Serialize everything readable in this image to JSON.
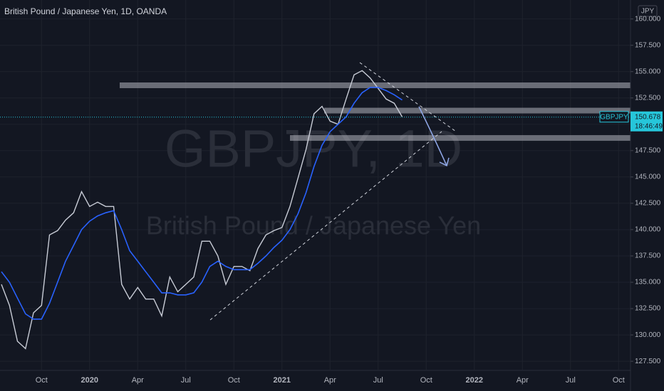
{
  "chart_data": {
    "type": "line",
    "title": "British Pound / Japanese Yen, 1D, OANDA",
    "watermark": "GBPJPY, 1D",
    "watermark_subtitle": "British Pound / Japanese Yen",
    "currency": "JPY",
    "symbol": "GBPJPY",
    "last_price": 150.678,
    "countdown": "18:46:49",
    "categories": [
      null,
      null,
      null,
      null,
      null,
      "Oct",
      null,
      null,
      null,
      null,
      null,
      "2020",
      null,
      null,
      null,
      null,
      null,
      "Apr",
      null,
      null,
      null,
      null,
      null,
      "Jul",
      null,
      null,
      null,
      null,
      null,
      "Oct",
      null,
      null,
      null,
      null,
      null,
      "2021",
      null,
      null,
      null,
      null,
      null,
      "Apr",
      null,
      null,
      null,
      null,
      null,
      "Jul",
      null,
      null,
      null,
      null,
      null,
      "Oct",
      null,
      null,
      null,
      null,
      null,
      "2022",
      null,
      null,
      null,
      null,
      null,
      "Apr",
      null,
      null,
      null,
      null,
      null,
      "Jul",
      null,
      null,
      null,
      null,
      null,
      "Oct"
    ],
    "series": [
      {
        "color": "#c8ccd6",
        "values": [
          134.8,
          132.8,
          129.4,
          128.7,
          132.1,
          132.8,
          139.5,
          139.9,
          140.9,
          141.6,
          143.6,
          142.2,
          142.6,
          142.2,
          142.2,
          134.8,
          133.4,
          134.5,
          133.4,
          133.4,
          131.8,
          135.5,
          134.1,
          134.8,
          135.5,
          138.9,
          138.9,
          137.5,
          134.8,
          136.5,
          136.5,
          136.1,
          138.2,
          139.5,
          139.9,
          140.2,
          142.2,
          144.9,
          147.6,
          151.0,
          151.7,
          150.3,
          150.0,
          152.4,
          154.7,
          155.1,
          154.4,
          153.4,
          152.4,
          152.0,
          150.7,
          null,
          null,
          null,
          null,
          null,
          null,
          null,
          null,
          null,
          null,
          null,
          null,
          null,
          null,
          null,
          null,
          null,
          null,
          null,
          null,
          null,
          null,
          null,
          null,
          null,
          null,
          null
        ]
      },
      {
        "color": "#2962ff",
        "values": [
          136,
          135,
          133.5,
          132,
          131.5,
          131.5,
          133,
          135,
          137,
          138.5,
          140,
          140.8,
          141.3,
          141.6,
          141.8,
          140,
          138,
          137,
          136,
          135,
          134,
          134,
          133.8,
          133.8,
          134,
          135,
          136.5,
          137,
          136.5,
          136.2,
          136.2,
          136.2,
          136.8,
          137.5,
          138.3,
          139,
          140,
          141.5,
          143.5,
          146,
          148,
          149.3,
          150,
          150.7,
          152,
          153,
          153.5,
          153.5,
          153.2,
          152.8,
          152.3,
          null,
          null,
          null,
          null,
          null,
          null,
          null,
          null,
          null,
          null,
          null,
          null,
          null,
          null,
          null,
          null,
          null,
          null,
          null,
          null,
          null,
          null,
          null,
          null,
          null,
          null,
          null
        ]
      }
    ],
    "levels": [
      153.7,
      151.3,
      148.7
    ],
    "ylim": [
      126.7,
      161.8
    ],
    "yticks": [
      {
        "value": 127.5,
        "label": "127.500"
      },
      {
        "value": 130,
        "label": "130.000"
      },
      {
        "value": 132.5,
        "label": "132.500"
      },
      {
        "value": 135,
        "label": "135.000"
      },
      {
        "value": 137.5,
        "label": "137.500"
      },
      {
        "value": 140,
        "label": "140.000"
      },
      {
        "value": 142.5,
        "label": "142.500"
      },
      {
        "value": 145,
        "label": "145.000"
      },
      {
        "value": 147.5,
        "label": "147.500"
      },
      {
        "value": 150,
        "label": "150.000"
      },
      {
        "value": 152.5,
        "label": "152.500"
      },
      {
        "value": 155,
        "label": "155.000"
      },
      {
        "value": 157.5,
        "label": "157.500"
      },
      {
        "value": 160,
        "label": "160.000"
      }
    ],
    "grid": true
  }
}
